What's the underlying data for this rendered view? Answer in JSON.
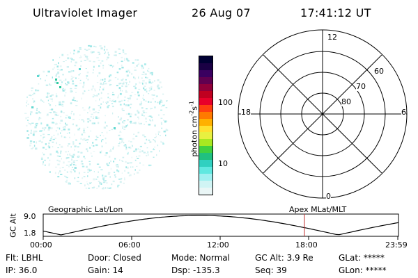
{
  "header": {
    "title": "Ultraviolet Imager",
    "date": "26 Aug 07",
    "time": "17:41:12 UT"
  },
  "colorbar": {
    "label": "photon cm",
    "label_exp1": "-2",
    "label_mid": "s",
    "label_exp2": "-1",
    "ticks": [
      "100",
      "10"
    ],
    "colors": [
      "#000033",
      "#1a0044",
      "#3a0060",
      "#600050",
      "#90003a",
      "#c00020",
      "#e8002a",
      "#ff4010",
      "#ff7a00",
      "#ffb000",
      "#ffe030",
      "#e8f040",
      "#a8e820",
      "#40d040",
      "#20c080",
      "#30d0c0",
      "#60e8e0",
      "#a0f0f0",
      "#d0f4f4",
      "#eaf6f6"
    ]
  },
  "polar_plot": {
    "mlt_labels": [
      "12",
      "18",
      "6",
      "0"
    ],
    "lat_labels": [
      "60",
      "70",
      "80"
    ]
  },
  "orbit_plot": {
    "ylabel": "GC Alt",
    "y_ticks": [
      "9.0",
      "1.8"
    ],
    "left_label": "Geographic Lat/Lon",
    "right_label": "Apex MLat/MLT",
    "x_ticks": [
      "00:00",
      "06:00",
      "12:00",
      "18:00",
      "23:59"
    ],
    "current_marker_color": "#c03030"
  },
  "status": {
    "row1": [
      "Flt: LBHL",
      "Door: Closed",
      "Mode: Normal",
      "GC Alt: 3.9 Re",
      "GLat: *****"
    ],
    "row2": [
      "IP: 36.0",
      "Gain: 14",
      "Dsp: -135.3",
      "Seq: 39",
      "GLon: *****"
    ]
  }
}
